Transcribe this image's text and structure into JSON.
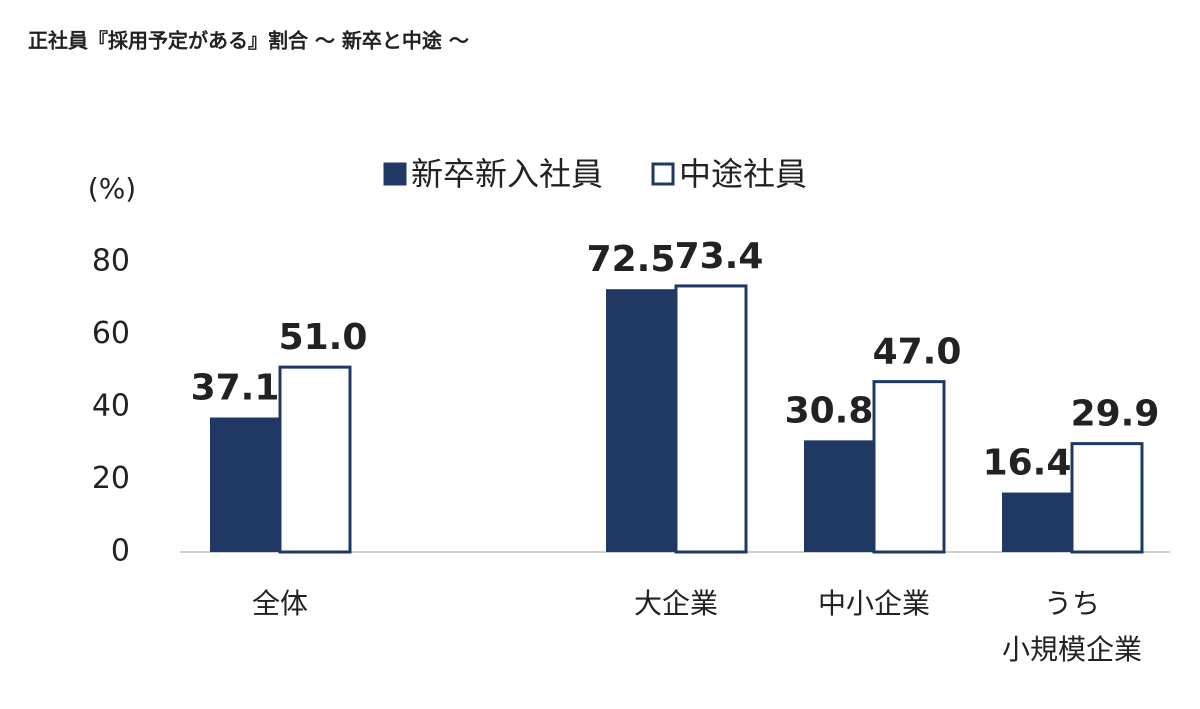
{
  "chart_data": {
    "type": "bar",
    "title": "正社員『採用予定がある』割合 〜 新卒と中途 〜",
    "y_unit": "(%)",
    "categories": [
      "全体",
      null,
      "大企業",
      "中小企業",
      "うち\n小規模企業"
    ],
    "series": [
      {
        "name": "新卒新入社員",
        "color": "#1f3864",
        "values": [
          37.1,
          null,
          72.5,
          30.8,
          16.4
        ]
      },
      {
        "name": "中途社員",
        "color": "#1f3864",
        "fill": "#ffffff",
        "values": [
          51.0,
          null,
          73.4,
          47.0,
          29.9
        ],
        "value_labels": [
          "51.0",
          null,
          "73.4",
          "47.0",
          "29.9"
        ]
      }
    ],
    "ylim": [
      0,
      80
    ],
    "yticks": [
      0,
      20,
      40,
      60,
      80
    ],
    "grid": false
  }
}
